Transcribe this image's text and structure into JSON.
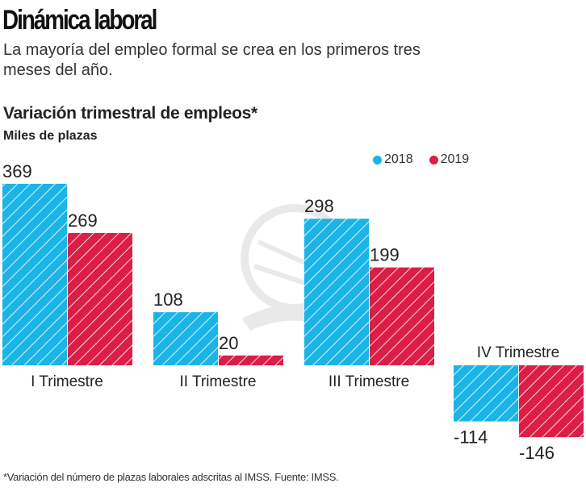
{
  "header": {
    "title": "Dinámica laboral",
    "subtitle": "La mayoría del empleo formal se crea en los primeros tres meses del año."
  },
  "chart_data": {
    "type": "bar",
    "title": "Variación trimestral de empleos*",
    "subtitle": "Miles de plazas",
    "ylabel": "Miles de plazas",
    "xlabel": "",
    "categories": [
      "I Trimestre",
      "II Trimestre",
      "III Trimestre",
      "IV Trimestre"
    ],
    "series": [
      {
        "name": "2018",
        "color": "#1ab4e6",
        "values": [
          369,
          108,
          298,
          -114
        ],
        "labels": [
          "369",
          "108",
          "298",
          "-114"
        ]
      },
      {
        "name": "2019",
        "color": "#dc1e46",
        "values": [
          269,
          20,
          199,
          -146
        ],
        "labels": [
          "269",
          "20",
          "199",
          "-146"
        ]
      }
    ],
    "legend": "top-right",
    "grid": false,
    "pattern": "diagonal-stripes",
    "footnote": "*Variación del número de plazas laborales adscritas al IMSS. Fuente: IMSS."
  }
}
